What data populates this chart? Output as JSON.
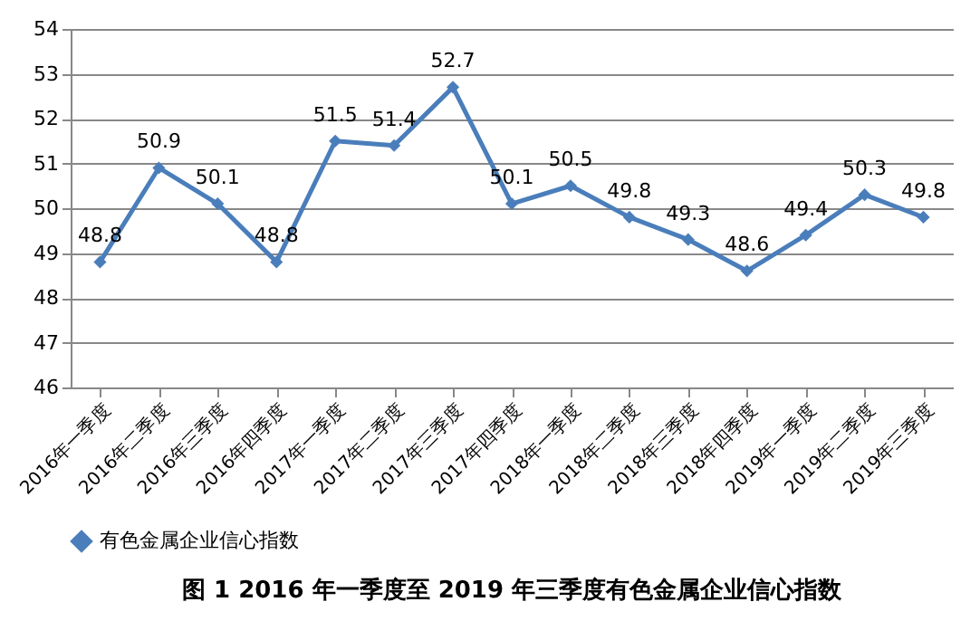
{
  "chart_data": {
    "type": "line",
    "title": "图 1 2016 年一季度至 2019 年三季度有色金属企业信心指数",
    "categories": [
      "2016年一季度",
      "2016年二季度",
      "2016年三季度",
      "2016年四季度",
      "2017年一季度",
      "2017年二季度",
      "2017年三季度",
      "2017年四季度",
      "2018年一季度",
      "2018年二季度",
      "2018年三季度",
      "2018年四季度",
      "2019年一季度",
      "2019年二季度",
      "2019年三季度"
    ],
    "series": [
      {
        "name": "有色金属企业信心指数",
        "color": "#4a7ebb",
        "values": [
          48.8,
          50.9,
          50.1,
          48.8,
          51.5,
          51.4,
          52.7,
          50.1,
          50.5,
          49.8,
          49.3,
          48.6,
          49.4,
          50.3,
          49.8
        ]
      }
    ],
    "ylim": [
      46,
      54
    ],
    "yticks": [
      46,
      47,
      48,
      49,
      50,
      51,
      52,
      53,
      54
    ],
    "grid": "y",
    "legend": "bottom",
    "marker": "diamond",
    "line_style": "solid",
    "data_labels": true
  }
}
